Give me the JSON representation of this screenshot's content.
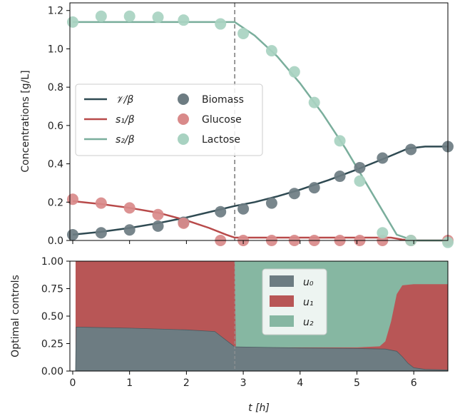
{
  "chart_data": [
    {
      "type": "line",
      "ylabel": "Concentrations [g/L]",
      "xlim": [
        -0.05,
        6.6
      ],
      "ylim": [
        0,
        1.24
      ],
      "y_ticks": [
        "0.0",
        "0.2",
        "0.4",
        "0.6",
        "0.8",
        "1.0",
        "1.2"
      ],
      "vline_x": 2.85,
      "legend_placement": "middle-left",
      "lines": [
        {
          "name": "𝒱/β",
          "color": "#2f4a52",
          "x": [
            0,
            0.5,
            1.0,
            1.5,
            2.0,
            2.5,
            2.85,
            3.2,
            3.6,
            4.0,
            4.5,
            5.0,
            5.5,
            5.9,
            6.2,
            6.6
          ],
          "y": [
            0.03,
            0.045,
            0.065,
            0.09,
            0.12,
            0.155,
            0.18,
            0.2,
            0.23,
            0.265,
            0.315,
            0.37,
            0.43,
            0.48,
            0.49,
            0.49
          ]
        },
        {
          "name": "s₁/β",
          "color": "#b84a4a",
          "x": [
            0,
            0.5,
            1.0,
            1.5,
            2.0,
            2.4,
            2.7,
            2.85,
            3.2,
            4.0,
            5.0,
            5.6,
            5.8,
            6.0,
            6.6
          ],
          "y": [
            0.205,
            0.19,
            0.17,
            0.145,
            0.105,
            0.065,
            0.03,
            0.015,
            0.015,
            0.015,
            0.015,
            0.015,
            0.005,
            0.0,
            0.0
          ]
        },
        {
          "name": "s₂/β",
          "color": "#7aae9c",
          "x": [
            0,
            1.0,
            2.0,
            2.85,
            3.2,
            3.6,
            4.0,
            4.4,
            4.8,
            5.1,
            5.4,
            5.7,
            6.0,
            6.6
          ],
          "y": [
            1.14,
            1.14,
            1.14,
            1.14,
            1.07,
            0.96,
            0.82,
            0.66,
            0.48,
            0.33,
            0.18,
            0.03,
            0.0,
            0.0
          ]
        }
      ],
      "scatters": [
        {
          "name": "Biomass",
          "color": "#6d7c82",
          "x": [
            0,
            0.5,
            1.0,
            1.5,
            1.95,
            2.6,
            3.0,
            3.5,
            3.9,
            4.25,
            4.7,
            5.05,
            5.45,
            5.95,
            6.6
          ],
          "y": [
            0.03,
            0.04,
            0.055,
            0.075,
            0.095,
            0.15,
            0.165,
            0.195,
            0.245,
            0.275,
            0.335,
            0.38,
            0.43,
            0.475,
            0.49
          ]
        },
        {
          "name": "Glucose",
          "color": "#d98a8a",
          "x": [
            0,
            0.5,
            1.0,
            1.5,
            1.95,
            2.6,
            3.0,
            3.5,
            3.9,
            4.25,
            4.7,
            5.05,
            5.45,
            5.95,
            6.6
          ],
          "y": [
            0.215,
            0.195,
            0.17,
            0.135,
            0.09,
            0.0,
            0.0,
            0.0,
            0.0,
            0.0,
            0.0,
            0.0,
            0.0,
            0.0,
            0.0
          ]
        },
        {
          "name": "Lactose",
          "color": "#a8d2c1",
          "x": [
            0,
            0.5,
            1.0,
            1.5,
            1.95,
            2.6,
            3.0,
            3.5,
            3.9,
            4.25,
            4.7,
            5.05,
            5.45,
            5.95,
            6.6
          ],
          "y": [
            1.14,
            1.17,
            1.17,
            1.165,
            1.15,
            1.13,
            1.08,
            0.99,
            0.88,
            0.72,
            0.52,
            0.31,
            0.04,
            0.0,
            -0.01
          ]
        }
      ]
    },
    {
      "type": "area",
      "ylabel": "Optimal controls",
      "xlabel": "t [h]",
      "xlim": [
        -0.05,
        6.6
      ],
      "ylim": [
        0,
        1.0
      ],
      "x_ticks": [
        "0",
        "1",
        "2",
        "3",
        "4",
        "5",
        "6"
      ],
      "y_ticks": [
        "0.00",
        "0.25",
        "0.50",
        "0.75",
        "1.00"
      ],
      "legend_placement": "top-center",
      "series": [
        {
          "name": "u₀",
          "color": "#6d7c82",
          "x": [
            0.05,
            0.06,
            1.0,
            2.0,
            2.5,
            2.85,
            2.87,
            4.0,
            5.0,
            5.5,
            5.7,
            5.8,
            5.9,
            6.0,
            6.2,
            6.6
          ],
          "y": [
            0.0,
            0.4,
            0.39,
            0.375,
            0.36,
            0.22,
            0.22,
            0.21,
            0.205,
            0.2,
            0.18,
            0.13,
            0.07,
            0.03,
            0.015,
            0.01
          ]
        },
        {
          "name": "u₁",
          "color": "#b85656",
          "x_boundary": [
            0.05,
            2.85,
            2.87,
            5.0,
            5.4,
            5.5,
            5.6,
            5.7,
            5.8,
            6.0,
            6.6
          ],
          "y_top": [
            1.0,
            1.0,
            0.215,
            0.215,
            0.225,
            0.27,
            0.45,
            0.7,
            0.78,
            0.79,
            0.79
          ]
        },
        {
          "name": "u₂",
          "color": "#86b7a2"
        }
      ]
    }
  ],
  "legend_top": {
    "lines": [
      "𝒱/β",
      "s₁/β",
      "s₂/β"
    ],
    "points": [
      "Biomass",
      "Glucose",
      "Lactose"
    ]
  },
  "legend_bottom": [
    "u₀",
    "u₁",
    "u₂"
  ]
}
